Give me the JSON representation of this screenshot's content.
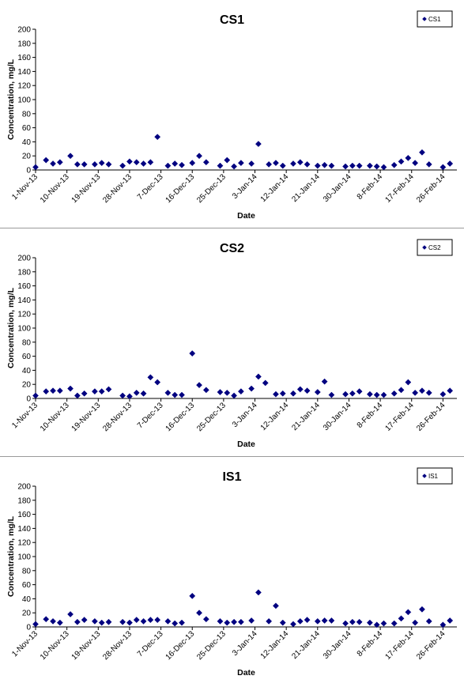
{
  "chart_data": [
    {
      "type": "scatter",
      "title": "CS1",
      "xlabel": "Date",
      "ylabel": "Concentration, mg/L",
      "ylim": [
        0,
        200
      ],
      "yticks": [
        0,
        20,
        40,
        60,
        80,
        100,
        120,
        140,
        160,
        180,
        200
      ],
      "xlim": [
        "1-Nov-13",
        "2-Mar-14"
      ],
      "xticks": [
        "1-Nov-13",
        "10-Nov-13",
        "19-Nov-13",
        "28-Nov-13",
        "7-Dec-13",
        "16-Dec-13",
        "25-Dec-13",
        "3-Jan-14",
        "12-Jan-14",
        "21-Jan-14",
        "30-Jan-14",
        "8-Feb-14",
        "17-Feb-14",
        "26-Feb-14"
      ],
      "legend": "top-right",
      "grid": false,
      "color": "#000080",
      "series": [
        {
          "name": "CS1",
          "points": [
            [
              "1-Nov-13",
              4
            ],
            [
              "4-Nov-13",
              14
            ],
            [
              "6-Nov-13",
              9
            ],
            [
              "8-Nov-13",
              11
            ],
            [
              "11-Nov-13",
              20
            ],
            [
              "13-Nov-13",
              8
            ],
            [
              "15-Nov-13",
              8
            ],
            [
              "18-Nov-13",
              8
            ],
            [
              "20-Nov-13",
              10
            ],
            [
              "22-Nov-13",
              8
            ],
            [
              "26-Nov-13",
              6
            ],
            [
              "28-Nov-13",
              12
            ],
            [
              "30-Nov-13",
              11
            ],
            [
              "2-Dec-13",
              9
            ],
            [
              "4-Dec-13",
              11
            ],
            [
              "6-Dec-13",
              47
            ],
            [
              "9-Dec-13",
              6
            ],
            [
              "11-Dec-13",
              9
            ],
            [
              "13-Dec-13",
              7
            ],
            [
              "16-Dec-13",
              10
            ],
            [
              "18-Dec-13",
              20
            ],
            [
              "20-Dec-13",
              11
            ],
            [
              "24-Dec-13",
              6
            ],
            [
              "26-Dec-13",
              14
            ],
            [
              "28-Dec-13",
              5
            ],
            [
              "30-Dec-13",
              10
            ],
            [
              "2-Jan-14",
              9
            ],
            [
              "4-Jan-14",
              37
            ],
            [
              "7-Jan-14",
              8
            ],
            [
              "9-Jan-14",
              10
            ],
            [
              "11-Jan-14",
              6
            ],
            [
              "14-Jan-14",
              9
            ],
            [
              "16-Jan-14",
              11
            ],
            [
              "18-Jan-14",
              8
            ],
            [
              "21-Jan-14",
              6
            ],
            [
              "23-Jan-14",
              7
            ],
            [
              "25-Jan-14",
              6
            ],
            [
              "29-Jan-14",
              5
            ],
            [
              "31-Jan-14",
              6
            ],
            [
              "2-Feb-14",
              6
            ],
            [
              "5-Feb-14",
              6
            ],
            [
              "7-Feb-14",
              5
            ],
            [
              "9-Feb-14",
              4
            ],
            [
              "12-Feb-14",
              7
            ],
            [
              "14-Feb-14",
              12
            ],
            [
              "16-Feb-14",
              17
            ],
            [
              "18-Feb-14",
              10
            ],
            [
              "20-Feb-14",
              25
            ],
            [
              "22-Feb-14",
              8
            ],
            [
              "26-Feb-14",
              4
            ],
            [
              "28-Feb-14",
              9
            ]
          ]
        }
      ]
    },
    {
      "type": "scatter",
      "title": "CS2",
      "xlabel": "Date",
      "ylabel": "Concentration, mg/L",
      "ylim": [
        0,
        200
      ],
      "yticks": [
        0,
        20,
        40,
        60,
        80,
        100,
        120,
        140,
        160,
        180,
        200
      ],
      "xlim": [
        "1-Nov-13",
        "2-Mar-14"
      ],
      "xticks": [
        "1-Nov-13",
        "10-Nov-13",
        "19-Nov-13",
        "28-Nov-13",
        "7-Dec-13",
        "16-Dec-13",
        "25-Dec-13",
        "3-Jan-14",
        "12-Jan-14",
        "21-Jan-14",
        "30-Jan-14",
        "8-Feb-14",
        "17-Feb-14",
        "26-Feb-14"
      ],
      "legend": "top-right",
      "grid": false,
      "color": "#000080",
      "series": [
        {
          "name": "CS2",
          "points": [
            [
              "1-Nov-13",
              4
            ],
            [
              "4-Nov-13",
              10
            ],
            [
              "6-Nov-13",
              11
            ],
            [
              "8-Nov-13",
              11
            ],
            [
              "11-Nov-13",
              14
            ],
            [
              "13-Nov-13",
              4
            ],
            [
              "15-Nov-13",
              7
            ],
            [
              "18-Nov-13",
              10
            ],
            [
              "20-Nov-13",
              10
            ],
            [
              "22-Nov-13",
              13
            ],
            [
              "26-Nov-13",
              4
            ],
            [
              "28-Nov-13",
              3
            ],
            [
              "30-Nov-13",
              8
            ],
            [
              "2-Dec-13",
              7
            ],
            [
              "4-Dec-13",
              30
            ],
            [
              "6-Dec-13",
              23
            ],
            [
              "9-Dec-13",
              8
            ],
            [
              "11-Dec-13",
              5
            ],
            [
              "13-Dec-13",
              5
            ],
            [
              "16-Dec-13",
              64
            ],
            [
              "18-Dec-13",
              19
            ],
            [
              "20-Dec-13",
              12
            ],
            [
              "24-Dec-13",
              9
            ],
            [
              "26-Dec-13",
              8
            ],
            [
              "28-Dec-13",
              4
            ],
            [
              "30-Dec-13",
              10
            ],
            [
              "2-Jan-14",
              14
            ],
            [
              "4-Jan-14",
              31
            ],
            [
              "6-Jan-14",
              22
            ],
            [
              "9-Jan-14",
              6
            ],
            [
              "11-Jan-14",
              7
            ],
            [
              "14-Jan-14",
              7
            ],
            [
              "16-Jan-14",
              13
            ],
            [
              "18-Jan-14",
              11
            ],
            [
              "21-Jan-14",
              9
            ],
            [
              "23-Jan-14",
              24
            ],
            [
              "25-Jan-14",
              5
            ],
            [
              "29-Jan-14",
              6
            ],
            [
              "31-Jan-14",
              7
            ],
            [
              "2-Feb-14",
              10
            ],
            [
              "5-Feb-14",
              6
            ],
            [
              "7-Feb-14",
              5
            ],
            [
              "9-Feb-14",
              5
            ],
            [
              "12-Feb-14",
              7
            ],
            [
              "14-Feb-14",
              12
            ],
            [
              "16-Feb-14",
              23
            ],
            [
              "18-Feb-14",
              8
            ],
            [
              "20-Feb-14",
              11
            ],
            [
              "22-Feb-14",
              8
            ],
            [
              "26-Feb-14",
              6
            ],
            [
              "28-Feb-14",
              11
            ]
          ]
        }
      ]
    },
    {
      "type": "scatter",
      "title": "IS1",
      "xlabel": "Date",
      "ylabel": "Concentration, mg/L",
      "ylim": [
        0,
        200
      ],
      "yticks": [
        0,
        20,
        40,
        60,
        80,
        100,
        120,
        140,
        160,
        180,
        200
      ],
      "xlim": [
        "1-Nov-13",
        "2-Mar-14"
      ],
      "xticks": [
        "1-Nov-13",
        "10-Nov-13",
        "19-Nov-13",
        "28-Nov-13",
        "7-Dec-13",
        "16-Dec-13",
        "25-Dec-13",
        "3-Jan-14",
        "12-Jan-14",
        "21-Jan-14",
        "30-Jan-14",
        "8-Feb-14",
        "17-Feb-14",
        "26-Feb-14"
      ],
      "legend": "top-right",
      "grid": false,
      "color": "#000080",
      "series": [
        {
          "name": "IS1",
          "points": [
            [
              "1-Nov-13",
              4
            ],
            [
              "4-Nov-13",
              11
            ],
            [
              "6-Nov-13",
              8
            ],
            [
              "8-Nov-13",
              6
            ],
            [
              "11-Nov-13",
              18
            ],
            [
              "13-Nov-13",
              7
            ],
            [
              "15-Nov-13",
              10
            ],
            [
              "18-Nov-13",
              8
            ],
            [
              "20-Nov-13",
              6
            ],
            [
              "22-Nov-13",
              7
            ],
            [
              "26-Nov-13",
              7
            ],
            [
              "28-Nov-13",
              6
            ],
            [
              "30-Nov-13",
              10
            ],
            [
              "2-Dec-13",
              8
            ],
            [
              "4-Dec-13",
              10
            ],
            [
              "6-Dec-13",
              10
            ],
            [
              "9-Dec-13",
              8
            ],
            [
              "11-Dec-13",
              5
            ],
            [
              "13-Dec-13",
              6
            ],
            [
              "16-Dec-13",
              44
            ],
            [
              "18-Dec-13",
              20
            ],
            [
              "20-Dec-13",
              11
            ],
            [
              "24-Dec-13",
              8
            ],
            [
              "26-Dec-13",
              6
            ],
            [
              "28-Dec-13",
              7
            ],
            [
              "30-Dec-13",
              7
            ],
            [
              "2-Jan-14",
              9
            ],
            [
              "4-Jan-14",
              49
            ],
            [
              "7-Jan-14",
              8
            ],
            [
              "9-Jan-14",
              30
            ],
            [
              "11-Jan-14",
              6
            ],
            [
              "14-Jan-14",
              4
            ],
            [
              "16-Jan-14",
              8
            ],
            [
              "18-Jan-14",
              10
            ],
            [
              "21-Jan-14",
              8
            ],
            [
              "23-Jan-14",
              9
            ],
            [
              "25-Jan-14",
              9
            ],
            [
              "29-Jan-14",
              5
            ],
            [
              "31-Jan-14",
              7
            ],
            [
              "2-Feb-14",
              7
            ],
            [
              "5-Feb-14",
              6
            ],
            [
              "7-Feb-14",
              3
            ],
            [
              "9-Feb-14",
              5
            ],
            [
              "12-Feb-14",
              5
            ],
            [
              "14-Feb-14",
              12
            ],
            [
              "16-Feb-14",
              21
            ],
            [
              "18-Feb-14",
              6
            ],
            [
              "20-Feb-14",
              25
            ],
            [
              "22-Feb-14",
              8
            ],
            [
              "26-Feb-14",
              3
            ],
            [
              "28-Feb-14",
              9
            ]
          ]
        }
      ]
    }
  ]
}
